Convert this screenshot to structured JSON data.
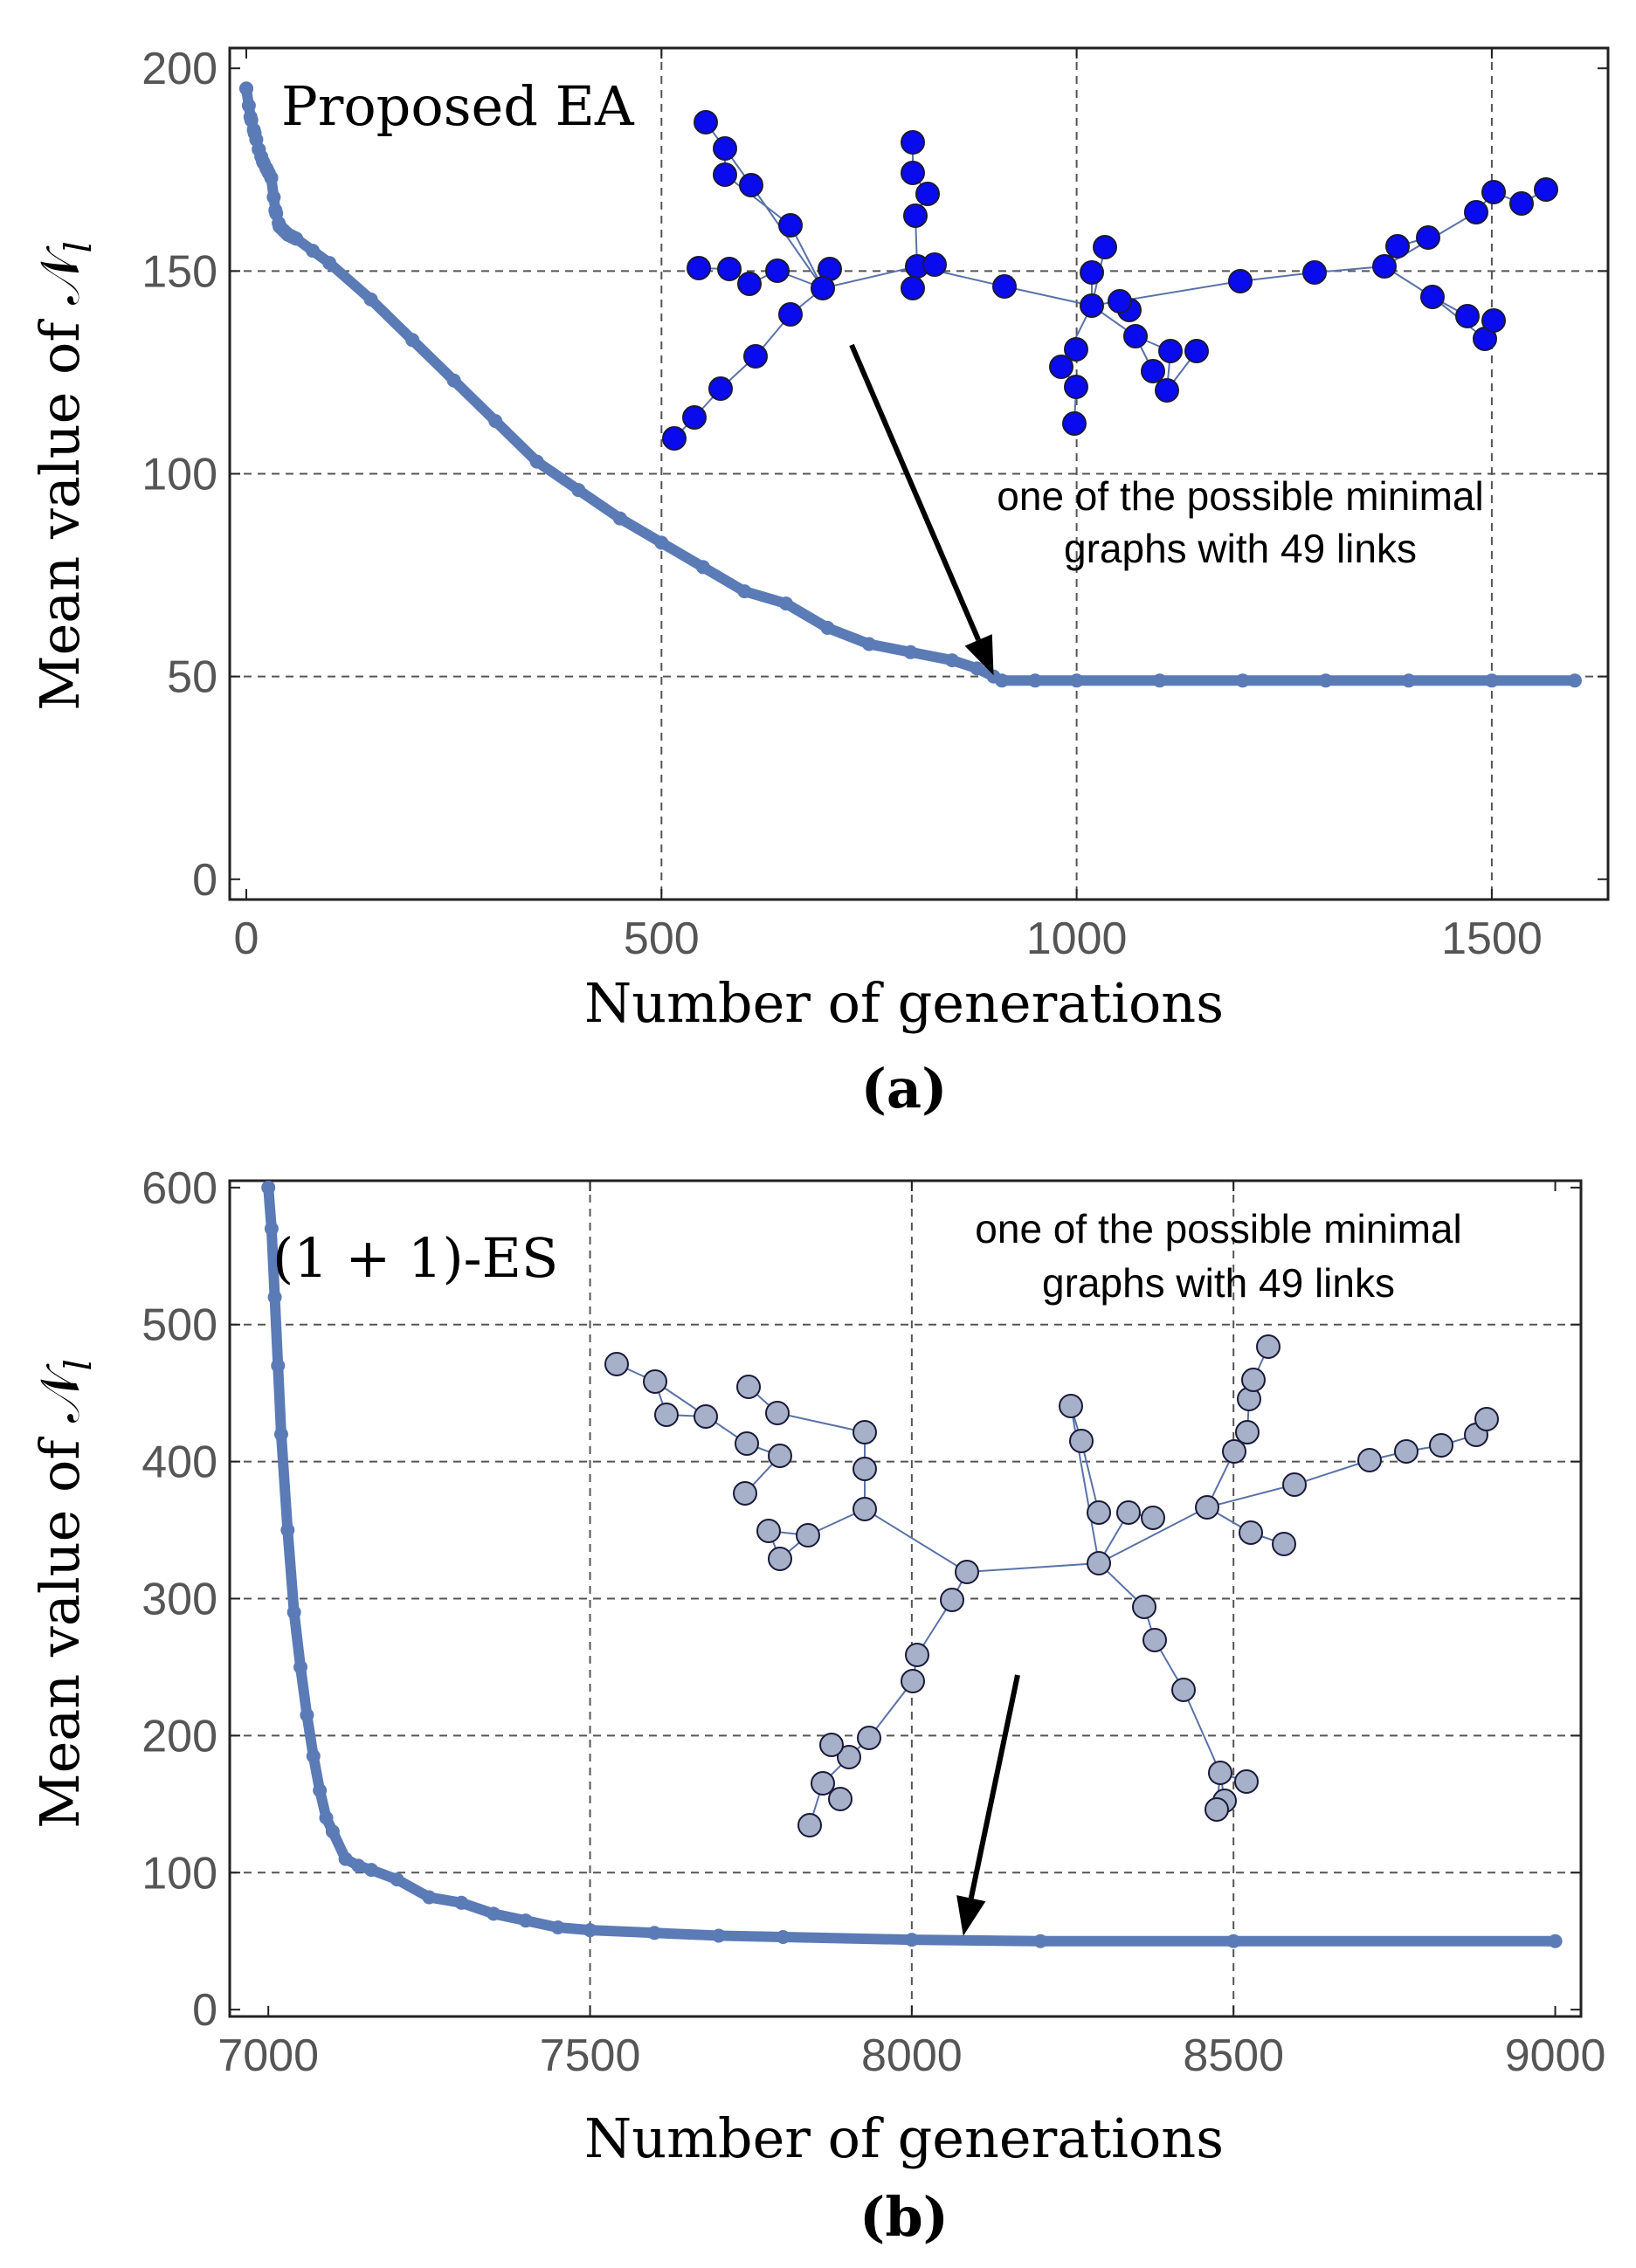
{
  "colors": {
    "series": "#5b7bb6",
    "graph_a_node": "#0a0aee",
    "graph_b_node": "#a6b0c8",
    "graph_edge": "#5a72a8"
  },
  "chart_data": [
    {
      "type": "scatter",
      "panel_label": "(a)",
      "title": "Proposed EA",
      "xlabel": "Number of generations",
      "ylabel": "Mean value of 𝒩",
      "ylabel_sub": "l",
      "xlim": [
        -20,
        1640
      ],
      "ylim": [
        -5,
        205
      ],
      "xticks": [
        0,
        500,
        1000,
        1500
      ],
      "yticks": [
        0,
        50,
        100,
        150,
        200
      ],
      "xgrid": [
        500,
        1000,
        1500
      ],
      "ygrid": [
        50,
        100,
        150
      ],
      "series": [
        {
          "name": "Mean value",
          "x": [
            0,
            5,
            10,
            15,
            20,
            25,
            30,
            35,
            40,
            50,
            60,
            80,
            100,
            150,
            200,
            250,
            300,
            350,
            400,
            450,
            500,
            550,
            600,
            650,
            700,
            750,
            800,
            850,
            880,
            900,
            910,
            950,
            1000,
            1100,
            1200,
            1300,
            1400,
            1500,
            1600
          ],
          "y": [
            195,
            188,
            184,
            180,
            177,
            175,
            173,
            165,
            161,
            159,
            158,
            155,
            152,
            143,
            133,
            123,
            113,
            103,
            96,
            89,
            83,
            77,
            71,
            68,
            62,
            58,
            56,
            54,
            52,
            50,
            49,
            49,
            49,
            49,
            49,
            49,
            49,
            49,
            49
          ]
        }
      ],
      "annotation": {
        "line1": "one of the possible minimal",
        "line2": "graphs with 49 links",
        "arrow_target": [
          900,
          49
        ]
      }
    },
    {
      "type": "scatter",
      "panel_label": "(b)",
      "title": "(1 + 1)-ES",
      "xlabel": "Number of generations",
      "ylabel": "Mean value of 𝒩",
      "ylabel_sub": "l",
      "xlim": [
        6940,
        9040
      ],
      "ylim": [
        -5,
        605
      ],
      "xticks": [
        7000,
        7500,
        8000,
        8500,
        9000
      ],
      "yticks": [
        0,
        100,
        200,
        300,
        400,
        500,
        600
      ],
      "xgrid": [
        7500,
        8000,
        8500
      ],
      "ygrid": [
        100,
        200,
        300,
        400,
        500
      ],
      "series": [
        {
          "name": "Mean value",
          "x": [
            7000,
            7005,
            7010,
            7015,
            7020,
            7030,
            7040,
            7050,
            7060,
            7070,
            7080,
            7090,
            7100,
            7120,
            7140,
            7160,
            7200,
            7250,
            7300,
            7350,
            7400,
            7450,
            7500,
            7600,
            7700,
            7800,
            8000,
            8200,
            8500,
            9000
          ],
          "y": [
            600,
            570,
            520,
            470,
            420,
            350,
            290,
            250,
            215,
            185,
            160,
            140,
            130,
            110,
            105,
            102,
            95,
            82,
            78,
            70,
            65,
            60,
            58,
            56,
            54,
            53,
            51,
            50,
            50,
            50
          ]
        }
      ],
      "annotation": {
        "line1": "one of the possible minimal",
        "line2": "graphs with 49 links",
        "arrow_target": [
          8080,
          50
        ]
      }
    }
  ]
}
